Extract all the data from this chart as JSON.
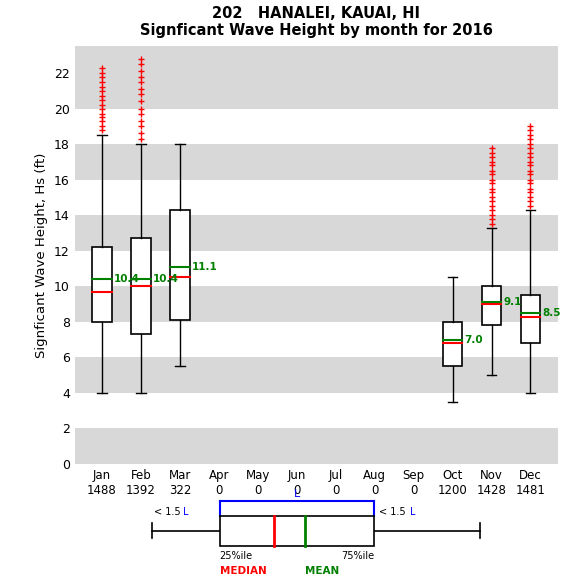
{
  "title_line1": "202   HANALEI, KAUAI, HI",
  "title_line2": "Signficant Wave Height by month for 2016",
  "ylabel": "Signficant Wave Height, Hs (ft)",
  "months": [
    "Jan",
    "Feb",
    "Mar",
    "Apr",
    "May",
    "Jun",
    "Jul",
    "Aug",
    "Sep",
    "Oct",
    "Nov",
    "Dec"
  ],
  "counts": [
    1488,
    1392,
    322,
    0,
    0,
    0,
    0,
    0,
    0,
    1200,
    1428,
    1481
  ],
  "box_data": {
    "Jan": {
      "q1": 8.0,
      "median": 9.7,
      "q3": 12.2,
      "mean": 10.4,
      "whislo": 4.0,
      "whishi": 18.5,
      "fliers_high": [
        18.8,
        19.0,
        19.3,
        19.5,
        19.7,
        20.0,
        20.2,
        20.5,
        20.7,
        21.0,
        21.2,
        21.5,
        21.8,
        22.0,
        22.3
      ],
      "fliers_low": []
    },
    "Feb": {
      "q1": 7.3,
      "median": 10.0,
      "q3": 12.7,
      "mean": 10.4,
      "whislo": 4.0,
      "whishi": 18.0,
      "fliers_high": [
        18.3,
        18.6,
        19.0,
        19.3,
        19.7,
        20.0,
        20.4,
        20.8,
        21.1,
        21.5,
        21.8,
        22.1,
        22.5,
        22.8
      ],
      "fliers_low": []
    },
    "Mar": {
      "q1": 8.1,
      "median": 10.5,
      "q3": 14.3,
      "mean": 11.1,
      "whislo": 5.5,
      "whishi": 18.0,
      "fliers_high": [],
      "fliers_low": []
    },
    "Apr": null,
    "May": null,
    "Jun": null,
    "Jul": null,
    "Aug": null,
    "Sep": null,
    "Oct": {
      "q1": 5.5,
      "median": 6.8,
      "q3": 8.0,
      "mean": 7.0,
      "whislo": 3.5,
      "whishi": 10.5,
      "fliers_high": [],
      "fliers_low": []
    },
    "Nov": {
      "q1": 7.8,
      "median": 9.0,
      "q3": 10.0,
      "mean": 9.1,
      "whislo": 5.0,
      "whishi": 13.3,
      "fliers_high": [
        13.5,
        13.8,
        14.0,
        14.3,
        14.5,
        14.8,
        15.0,
        15.3,
        15.5,
        15.8,
        16.0,
        16.3,
        16.5,
        16.8,
        17.0,
        17.3,
        17.5,
        17.8
      ],
      "fliers_low": []
    },
    "Dec": {
      "q1": 6.8,
      "median": 8.3,
      "q3": 9.5,
      "mean": 8.5,
      "whislo": 4.0,
      "whishi": 14.3,
      "fliers_high": [
        14.5,
        14.8,
        15.0,
        15.3,
        15.5,
        15.8,
        16.0,
        16.3,
        16.5,
        16.8,
        17.0,
        17.3,
        17.5,
        17.8,
        18.0,
        18.3,
        18.5,
        18.8,
        19.0
      ],
      "fliers_low": []
    }
  },
  "ylim": [
    0,
    23.5
  ],
  "yticks": [
    0,
    2,
    4,
    6,
    8,
    10,
    12,
    14,
    16,
    18,
    20,
    22
  ],
  "band_colors": [
    "#d8d8d8",
    "#ffffff",
    "#d8d8d8",
    "#ffffff",
    "#d8d8d8",
    "#ffffff",
    "#d8d8d8",
    "#ffffff",
    "#d8d8d8",
    "#ffffff",
    "#d8d8d8",
    "#ffffff"
  ],
  "box_color": "white",
  "median_color": "red",
  "mean_color": "green",
  "flier_color": "red",
  "whisker_color": "black",
  "box_edge_color": "black"
}
